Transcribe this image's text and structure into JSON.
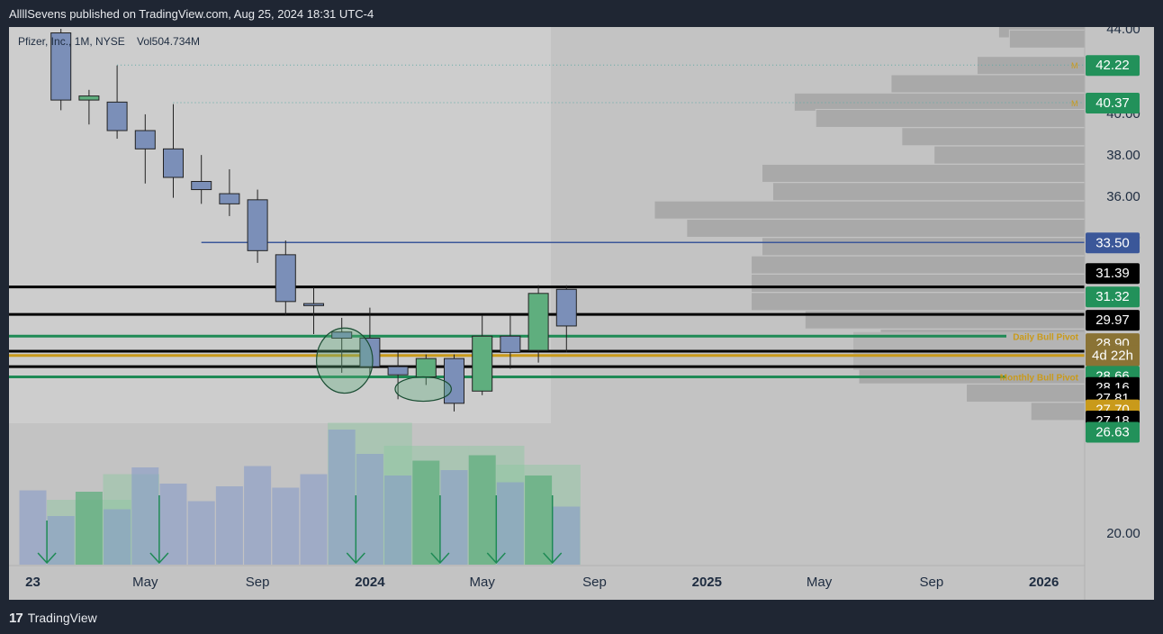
{
  "header": {
    "publish_text": "AllllSevens published on TradingView.com, Aug 25, 2024 18:31 UTC-4"
  },
  "footer": {
    "brand": "TradingView",
    "logo_glyph": "17"
  },
  "colors": {
    "bg": "#c3c3c3",
    "candle": "#7b8fb8",
    "bull": "#5fae7e",
    "green_line": "#1e8a55",
    "gold_line": "#c99a1a",
    "blue_line": "#3b5799",
    "black": "#000000",
    "vp": "#a9a9a9"
  },
  "chart_data": {
    "type": "candlestick",
    "symbol_info": "Pfizer, Inc., 1M, NYSE",
    "volume_info": "Vol504.734M",
    "price_axis": {
      "ticks": [
        {
          "label": "44.00",
          "value": 44
        },
        {
          "label": "40.00",
          "value": 40
        },
        {
          "label": "38.00",
          "value": 38
        },
        {
          "label": "36.00",
          "value": 36
        },
        {
          "label": "34.00",
          "value": 34
        },
        {
          "label": "20.00",
          "value": 20
        }
      ]
    },
    "time_axis": [
      {
        "label": "23",
        "x": 0,
        "bold": true
      },
      {
        "label": "May",
        "x": 4,
        "bold": false
      },
      {
        "label": "Sep",
        "x": 8,
        "bold": false
      },
      {
        "label": "2024",
        "x": 12,
        "bold": true
      },
      {
        "label": "May",
        "x": 16,
        "bold": false
      },
      {
        "label": "Sep",
        "x": 20,
        "bold": false
      },
      {
        "label": "2025",
        "x": 24,
        "bold": true
      },
      {
        "label": "May",
        "x": 28,
        "bold": false
      },
      {
        "label": "Sep",
        "x": 32,
        "bold": false
      },
      {
        "label": "2026",
        "x": 36,
        "bold": true
      }
    ],
    "candles": [
      {
        "i": 1,
        "o": 40.5,
        "h": 44.0,
        "l": 40.0,
        "c": 43.8,
        "bull": false
      },
      {
        "i": 2,
        "o": 40.7,
        "h": 41.0,
        "l": 39.3,
        "c": 40.5,
        "bull": true
      },
      {
        "i": 3,
        "o": 40.4,
        "h": 42.2,
        "l": 38.6,
        "c": 39.0,
        "bull": false
      },
      {
        "i": 4,
        "o": 39.0,
        "h": 39.8,
        "l": 36.4,
        "c": 38.1,
        "bull": false
      },
      {
        "i": 5,
        "o": 38.1,
        "h": 40.3,
        "l": 35.7,
        "c": 36.7,
        "bull": false
      },
      {
        "i": 6,
        "o": 36.5,
        "h": 37.8,
        "l": 35.4,
        "c": 36.1,
        "bull": false
      },
      {
        "i": 7,
        "o": 35.9,
        "h": 37.1,
        "l": 34.8,
        "c": 35.4,
        "bull": false
      },
      {
        "i": 8,
        "o": 35.6,
        "h": 36.1,
        "l": 32.5,
        "c": 33.1,
        "bull": false
      },
      {
        "i": 9,
        "o": 32.9,
        "h": 33.6,
        "l": 29.9,
        "c": 30.6,
        "bull": false
      },
      {
        "i": 10,
        "o": 30.5,
        "h": 31.3,
        "l": 29.0,
        "c": 30.4,
        "bull": false
      },
      {
        "i": 11,
        "o": 29.1,
        "h": 29.8,
        "l": 27.1,
        "c": 28.8,
        "bull": false
      },
      {
        "i": 12,
        "o": 28.8,
        "h": 30.3,
        "l": 27.0,
        "c": 27.4,
        "bull": false
      },
      {
        "i": 13,
        "o": 27.4,
        "h": 28.1,
        "l": 25.8,
        "c": 27.0,
        "bull": false
      },
      {
        "i": 14,
        "o": 26.9,
        "h": 28.0,
        "l": 26.5,
        "c": 27.8,
        "bull": true
      },
      {
        "i": 15,
        "o": 27.8,
        "h": 28.0,
        "l": 25.2,
        "c": 25.6,
        "bull": false
      },
      {
        "i": 16,
        "o": 26.2,
        "h": 29.9,
        "l": 26.0,
        "c": 28.9,
        "bull": true
      },
      {
        "i": 17,
        "o": 28.9,
        "h": 29.9,
        "l": 27.3,
        "c": 28.1,
        "bull": false
      },
      {
        "i": 18,
        "o": 28.2,
        "h": 31.4,
        "l": 27.6,
        "c": 31.0,
        "bull": true
      },
      {
        "i": 19,
        "o": 31.2,
        "h": 31.4,
        "l": 28.1,
        "c": 29.4,
        "bull": false
      }
    ],
    "volume": [
      {
        "i": 0,
        "v": 0.55,
        "bull": false
      },
      {
        "i": 1,
        "v": 0.36,
        "bull": false
      },
      {
        "i": 2,
        "v": 0.54,
        "bull": true
      },
      {
        "i": 3,
        "v": 0.41,
        "bull": false
      },
      {
        "i": 4,
        "v": 0.72,
        "bull": false
      },
      {
        "i": 5,
        "v": 0.6,
        "bull": false
      },
      {
        "i": 6,
        "v": 0.47,
        "bull": false
      },
      {
        "i": 7,
        "v": 0.58,
        "bull": false
      },
      {
        "i": 8,
        "v": 0.73,
        "bull": false
      },
      {
        "i": 9,
        "v": 0.57,
        "bull": false
      },
      {
        "i": 10,
        "v": 0.67,
        "bull": false
      },
      {
        "i": 11,
        "v": 1.0,
        "bull": false
      },
      {
        "i": 12,
        "v": 0.82,
        "bull": false
      },
      {
        "i": 13,
        "v": 0.66,
        "bull": false
      },
      {
        "i": 14,
        "v": 0.77,
        "bull": true
      },
      {
        "i": 15,
        "v": 0.7,
        "bull": false
      },
      {
        "i": 16,
        "v": 0.81,
        "bull": true
      },
      {
        "i": 17,
        "v": 0.61,
        "bull": false
      },
      {
        "i": 18,
        "v": 0.66,
        "bull": true
      },
      {
        "i": 19,
        "v": 0.43,
        "bull": false
      }
    ],
    "volume_zones": [
      {
        "from": 0.5,
        "to": 3.5,
        "h": 0.48
      },
      {
        "from": 2.5,
        "to": 4.5,
        "h": 0.67
      },
      {
        "from": 10.5,
        "to": 13.5,
        "h": 1.05
      },
      {
        "from": 12.5,
        "to": 15.5,
        "h": 0.88
      },
      {
        "from": 15.5,
        "to": 17.5,
        "h": 0.88
      },
      {
        "from": 16.5,
        "to": 19.5,
        "h": 0.74
      }
    ],
    "arrows": [
      0.5,
      4.5,
      11.5,
      14.5,
      16.5,
      18.5
    ],
    "horizontal_lines": [
      {
        "price": 33.5,
        "from": 6,
        "color": "blue",
        "width": 1.5
      },
      {
        "price": 31.32,
        "from": -1,
        "color": "black",
        "width": 3
      },
      {
        "price": 29.97,
        "from": -1,
        "color": "black",
        "width": 3
      },
      {
        "price": 28.9,
        "from": -1,
        "color": "green",
        "width": 3,
        "label": "Daily Bull Pivot"
      },
      {
        "price": 28.16,
        "from": -1,
        "color": "black",
        "width": 3
      },
      {
        "price": 27.95,
        "from": -1,
        "color": "gold",
        "width": 3
      },
      {
        "price": 27.4,
        "from": -1,
        "color": "black",
        "width": 3
      },
      {
        "price": 26.9,
        "from": -1,
        "color": "green",
        "width": 3,
        "label": "Monthly Bull Pivot"
      }
    ],
    "dotted_lines": [
      {
        "price": 42.22,
        "from": 3,
        "marker": "M"
      },
      {
        "price": 40.37,
        "from": 5,
        "marker": "M"
      }
    ],
    "ellipses": [
      {
        "cx": 11.1,
        "cy": 27.7,
        "rx": 1,
        "ry": 1.6
      },
      {
        "cx": 13.9,
        "cy": 26.3,
        "rx": 1,
        "ry": 0.6
      }
    ],
    "volume_profile": [
      {
        "price": 44.0,
        "w": 0.08
      },
      {
        "price": 43.5,
        "w": 0.07
      },
      {
        "price": 42.2,
        "w": 0.1
      },
      {
        "price": 41.3,
        "w": 0.18
      },
      {
        "price": 40.4,
        "w": 0.27
      },
      {
        "price": 39.6,
        "w": 0.25
      },
      {
        "price": 38.7,
        "w": 0.17
      },
      {
        "price": 37.8,
        "w": 0.14
      },
      {
        "price": 36.9,
        "w": 0.3
      },
      {
        "price": 36.0,
        "w": 0.29
      },
      {
        "price": 35.1,
        "w": 0.4
      },
      {
        "price": 34.2,
        "w": 0.37
      },
      {
        "price": 33.3,
        "w": 0.3
      },
      {
        "price": 32.4,
        "w": 0.31
      },
      {
        "price": 31.5,
        "w": 0.31
      },
      {
        "price": 30.6,
        "w": 0.31
      },
      {
        "price": 29.7,
        "w": 0.26
      },
      {
        "price": 28.8,
        "w": 0.19
      },
      {
        "price": 27.9,
        "w": 0.21
      },
      {
        "price": 27.0,
        "w": 0.21
      },
      {
        "price": 26.1,
        "w": 0.11
      },
      {
        "price": 25.2,
        "w": 0.05
      }
    ],
    "price_labels": [
      {
        "text": "42.22",
        "price": 42.22,
        "bg": "#22915a",
        "fg": "#ffffff"
      },
      {
        "text": "40.37",
        "price": 40.37,
        "bg": "#22915a",
        "fg": "#ffffff"
      },
      {
        "text": "33.50",
        "price": 33.5,
        "bg": "#3b5799",
        "fg": "#ffffff"
      },
      {
        "text": "31.39",
        "price": 32.0,
        "bg": "#000000",
        "fg": "#ffffff"
      },
      {
        "text": "31.32",
        "price": 30.85,
        "bg": "#22915a",
        "fg": "#ffffff"
      },
      {
        "text": "29.97",
        "price": 29.7,
        "bg": "#000000",
        "fg": "#ffffff"
      },
      {
        "text": "28.90",
        "price": 28.55,
        "bg": "#8a7335",
        "fg": "#ffffff"
      },
      {
        "text": "4d 22h",
        "price": 27.95,
        "bg": "#8a7335",
        "fg": "#ffffff"
      },
      {
        "text": "28.66",
        "price": 26.95,
        "bg": "#22915a",
        "fg": "#ffffff"
      },
      {
        "text": "28.16",
        "price": 26.4,
        "bg": "#000000",
        "fg": "#ffffff"
      },
      {
        "text": "27.81",
        "price": 25.85,
        "bg": "#000000",
        "fg": "#ffffff"
      },
      {
        "text": "27.70",
        "price": 25.3,
        "bg": "#c99a1a",
        "fg": "#ffffff"
      },
      {
        "text": "27.18",
        "price": 24.75,
        "bg": "#000000",
        "fg": "#ffffff"
      },
      {
        "text": "26.63",
        "price": 24.2,
        "bg": "#22915a",
        "fg": "#ffffff"
      }
    ]
  }
}
